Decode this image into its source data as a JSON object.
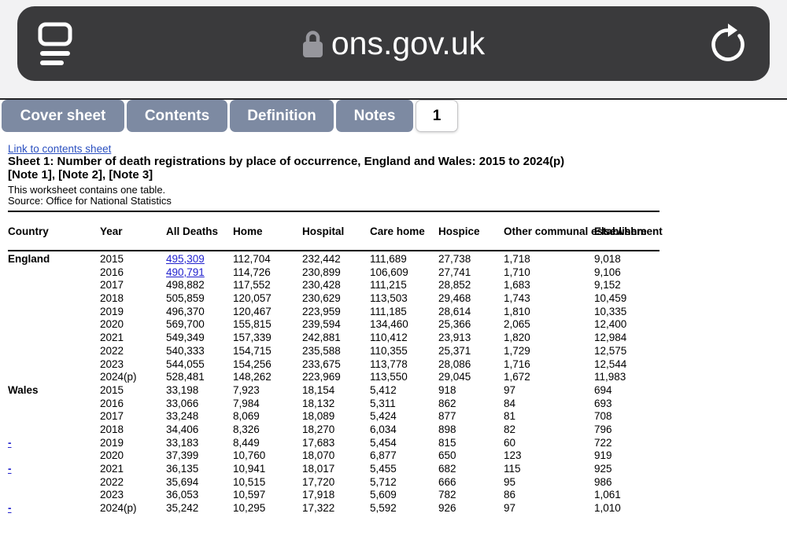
{
  "browser": {
    "url": "ons.gov.uk",
    "icons": {
      "reader": "reader-icon",
      "lock": "lock-icon",
      "refresh": "refresh-icon"
    }
  },
  "tabs": [
    {
      "label": "Cover sheet",
      "active": false
    },
    {
      "label": "Contents",
      "active": false
    },
    {
      "label": "Definition",
      "active": false
    },
    {
      "label": "Notes",
      "active": false
    },
    {
      "label": "1",
      "active": true
    }
  ],
  "sheet": {
    "link_text": "Link to contents sheet",
    "title": "Sheet 1: Number of death registrations by place of occurrence, England and Wales: 2015 to 2024(p)",
    "notes": "[Note 1], [Note 2], [Note 3]",
    "description": "This worksheet contains one table.",
    "source": "Source: Office for National Statistics"
  },
  "table": {
    "columns": [
      "Country",
      "Year",
      "All Deaths",
      "Home",
      "Hospital",
      "Care home",
      "Hospice",
      "Other communal establishment",
      "Elsewhere"
    ],
    "link_color": "#2222ce",
    "rows": [
      {
        "country": "England",
        "year": "2015",
        "link_all_deaths": true,
        "values": [
          "495,309",
          "112,704",
          "232,442",
          "111,689",
          "27,738",
          "1,718",
          "9,018"
        ]
      },
      {
        "country": "",
        "year": "2016",
        "link_all_deaths": true,
        "values": [
          "490,791",
          "114,726",
          "230,899",
          "106,609",
          "27,741",
          "1,710",
          "9,106"
        ]
      },
      {
        "country": "",
        "year": "2017",
        "link_all_deaths": false,
        "values": [
          "498,882",
          "117,552",
          "230,428",
          "111,215",
          "28,852",
          "1,683",
          "9,152"
        ]
      },
      {
        "country": "",
        "year": "2018",
        "link_all_deaths": false,
        "values": [
          "505,859",
          "120,057",
          "230,629",
          "113,503",
          "29,468",
          "1,743",
          "10,459"
        ]
      },
      {
        "country": "",
        "year": "2019",
        "link_all_deaths": false,
        "values": [
          "496,370",
          "120,467",
          "223,959",
          "111,185",
          "28,614",
          "1,810",
          "10,335"
        ]
      },
      {
        "country": "",
        "year": "2020",
        "link_all_deaths": false,
        "values": [
          "569,700",
          "155,815",
          "239,594",
          "134,460",
          "25,366",
          "2,065",
          "12,400"
        ]
      },
      {
        "country": "",
        "year": "2021",
        "link_all_deaths": false,
        "values": [
          "549,349",
          "157,339",
          "242,881",
          "110,412",
          "23,913",
          "1,820",
          "12,984"
        ]
      },
      {
        "country": "",
        "year": "2022",
        "link_all_deaths": false,
        "values": [
          "540,333",
          "154,715",
          "235,588",
          "110,355",
          "25,371",
          "1,729",
          "12,575"
        ]
      },
      {
        "country": "",
        "year": "2023",
        "link_all_deaths": false,
        "values": [
          "544,055",
          "154,256",
          "233,675",
          "113,778",
          "28,086",
          "1,716",
          "12,544"
        ]
      },
      {
        "country": "",
        "year": "2024(p)",
        "link_all_deaths": false,
        "values": [
          "528,481",
          "148,262",
          "223,969",
          "113,550",
          "29,045",
          "1,672",
          "11,983"
        ]
      },
      {
        "country": "Wales",
        "year": "2015",
        "link_all_deaths": false,
        "values": [
          "33,198",
          "7,923",
          "18,154",
          "5,412",
          "918",
          "97",
          "694"
        ]
      },
      {
        "country": "",
        "year": "2016",
        "link_all_deaths": false,
        "values": [
          "33,066",
          "7,984",
          "18,132",
          "5,311",
          "862",
          "84",
          "693"
        ]
      },
      {
        "country": "",
        "year": "2017",
        "link_all_deaths": false,
        "values": [
          "33,248",
          "8,069",
          "18,089",
          "5,424",
          "877",
          "81",
          "708"
        ]
      },
      {
        "country": "",
        "year": "2018",
        "link_all_deaths": false,
        "values": [
          "34,406",
          "8,326",
          "18,270",
          "6,034",
          "898",
          "82",
          "796"
        ]
      },
      {
        "country": "-",
        "year": "2019",
        "link_all_deaths": false,
        "values": [
          "33,183",
          "8,449",
          "17,683",
          "5,454",
          "815",
          "60",
          "722"
        ]
      },
      {
        "country": "",
        "year": "2020",
        "link_all_deaths": false,
        "values": [
          "37,399",
          "10,760",
          "18,070",
          "6,877",
          "650",
          "123",
          "919"
        ]
      },
      {
        "country": "-",
        "year": "2021",
        "link_all_deaths": false,
        "values": [
          "36,135",
          "10,941",
          "18,017",
          "5,455",
          "682",
          "115",
          "925"
        ]
      },
      {
        "country": "",
        "year": "2022",
        "link_all_deaths": false,
        "values": [
          "35,694",
          "10,515",
          "17,720",
          "5,712",
          "666",
          "95",
          "986"
        ]
      },
      {
        "country": "",
        "year": "2023",
        "link_all_deaths": false,
        "values": [
          "36,053",
          "10,597",
          "17,918",
          "5,609",
          "782",
          "86",
          "1,061"
        ]
      },
      {
        "country": "-",
        "year": "2024(p)",
        "link_all_deaths": false,
        "values": [
          "35,242",
          "10,295",
          "17,322",
          "5,592",
          "926",
          "97",
          "1,010"
        ]
      }
    ]
  }
}
